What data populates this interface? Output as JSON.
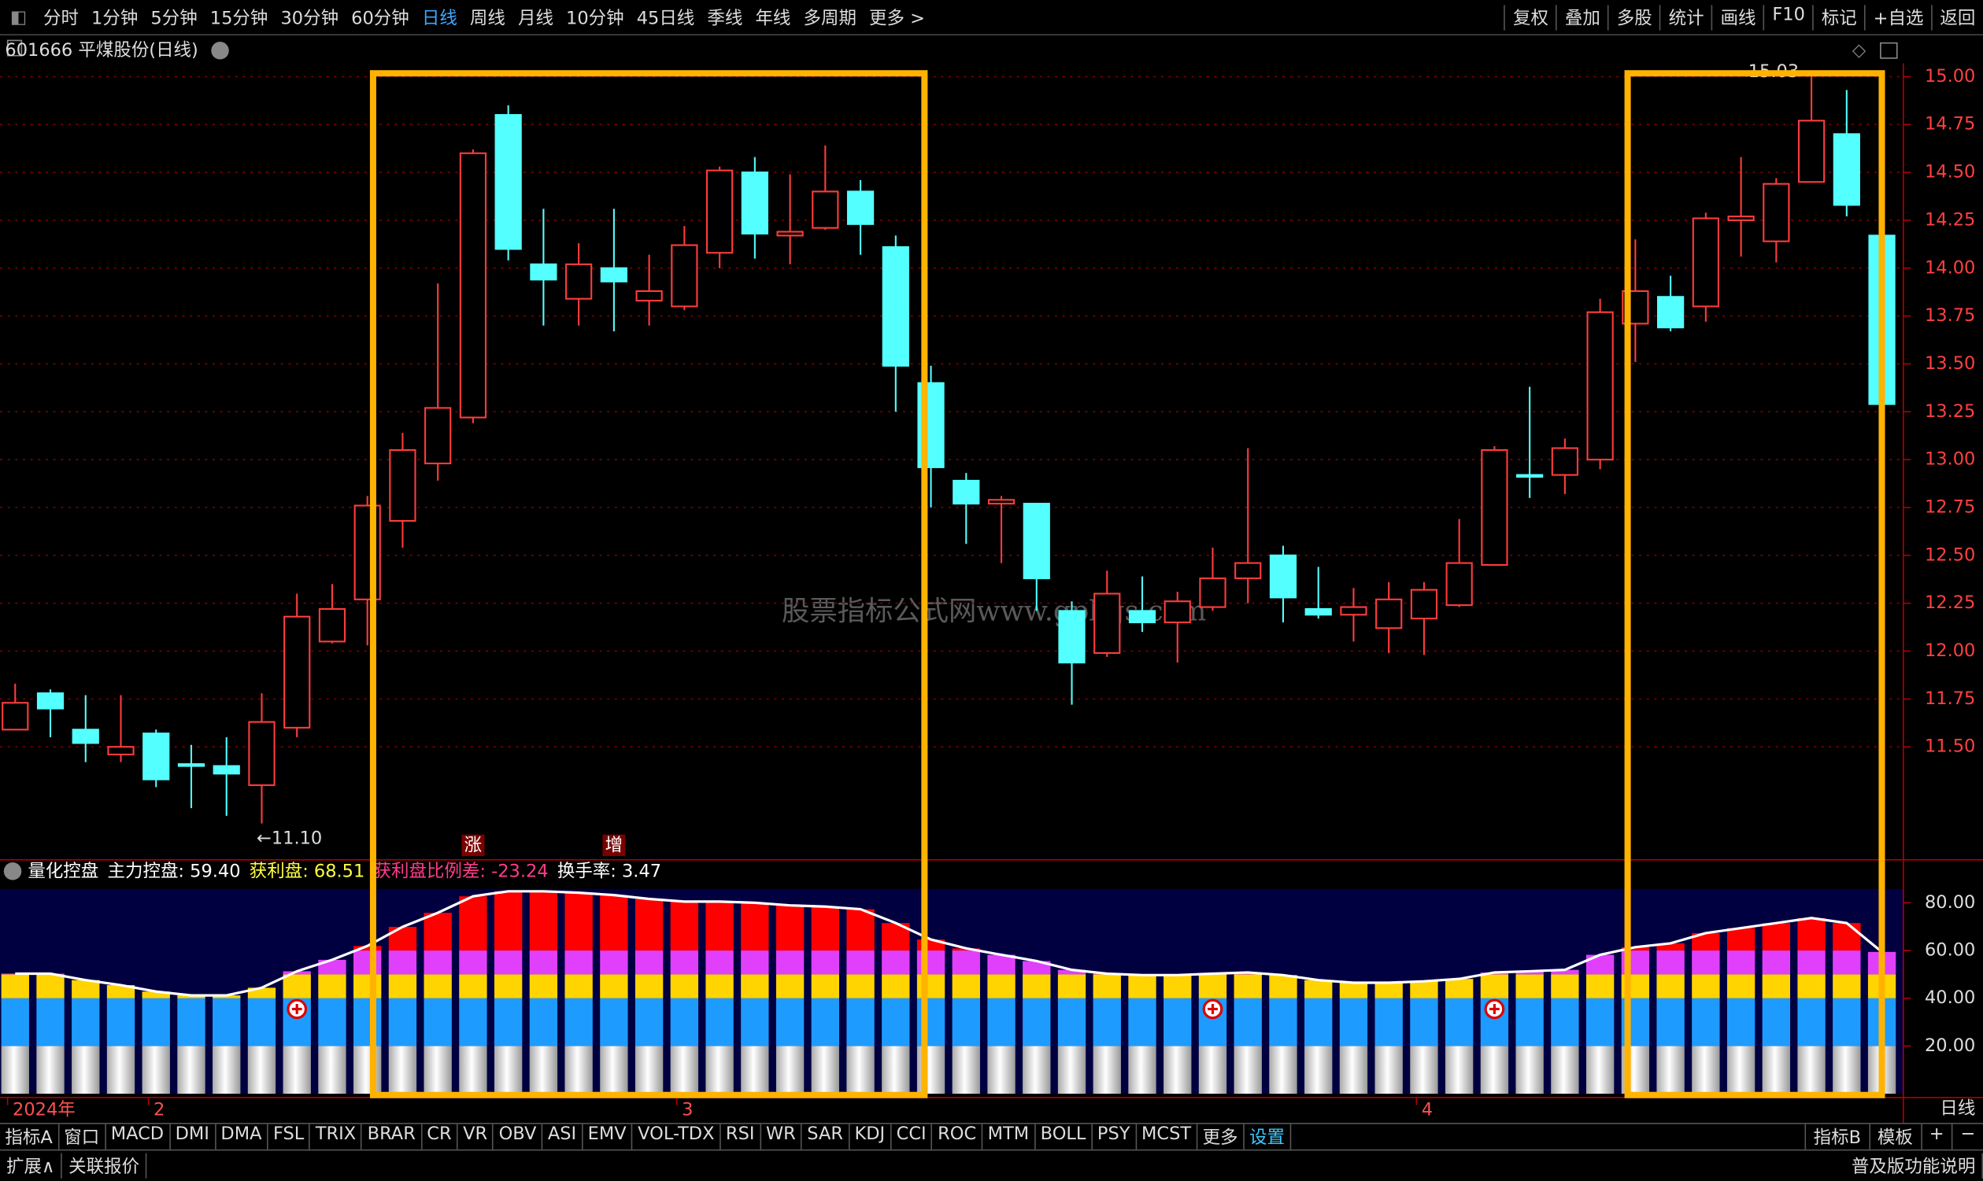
{
  "toolbar": {
    "periods": [
      "分时",
      "1分钟",
      "5分钟",
      "15分钟",
      "30分钟",
      "60分钟",
      "日线",
      "周线",
      "月线",
      "10分钟",
      "45日线",
      "季线",
      "年线",
      "多周期",
      "更多 >"
    ],
    "tools": [
      "复权",
      "叠加",
      "多股",
      "统计",
      "画线",
      "F10",
      "标记",
      "+自选",
      "返回"
    ]
  },
  "symbol_title": "601666 平煤股份(日线)",
  "watermark": "股票指标公式网www.gpbgs.com",
  "chart_data": [
    {
      "type": "candlestick",
      "open": [
        11.59,
        11.78,
        11.59,
        11.46,
        11.57,
        11.41,
        11.4,
        11.3,
        11.6,
        12.05,
        12.27,
        12.68,
        12.98,
        13.22,
        14.8,
        14.02,
        13.84,
        14.0,
        13.83,
        13.8,
        14.08,
        14.5,
        14.17,
        14.21,
        14.4,
        14.11,
        13.4,
        12.89,
        12.77,
        12.77,
        12.21,
        11.99,
        12.21,
        12.15,
        12.23,
        12.38,
        12.5,
        12.22,
        12.19,
        12.12,
        12.17,
        12.24,
        12.45,
        12.92,
        12.92,
        13.0,
        13.71,
        13.85,
        13.8,
        14.25,
        14.14,
        14.45,
        14.7,
        14.17
      ],
      "high": [
        11.83,
        11.8,
        11.77,
        11.77,
        11.59,
        11.51,
        11.55,
        11.78,
        12.3,
        12.35,
        12.81,
        13.14,
        13.92,
        14.62,
        14.85,
        14.31,
        14.13,
        14.31,
        14.07,
        14.22,
        14.53,
        14.58,
        14.49,
        14.64,
        14.46,
        14.17,
        13.49,
        12.93,
        12.81,
        12.77,
        12.26,
        12.42,
        12.39,
        12.31,
        12.54,
        13.06,
        12.55,
        12.44,
        12.33,
        12.36,
        12.36,
        12.69,
        13.07,
        13.38,
        13.11,
        13.84,
        14.15,
        13.96,
        14.29,
        14.58,
        14.47,
        15.03,
        14.93,
        14.39
      ],
      "low": [
        11.59,
        11.55,
        11.42,
        11.42,
        11.29,
        11.18,
        11.14,
        11.1,
        11.55,
        12.04,
        12.03,
        12.54,
        12.89,
        13.19,
        14.04,
        13.7,
        13.7,
        13.67,
        13.7,
        13.78,
        14.0,
        14.05,
        14.02,
        14.2,
        14.07,
        13.25,
        12.75,
        12.56,
        12.46,
        12.21,
        11.72,
        11.97,
        12.1,
        11.94,
        12.21,
        12.25,
        12.15,
        12.17,
        12.05,
        11.99,
        11.98,
        12.23,
        12.45,
        12.8,
        12.82,
        12.95,
        13.51,
        13.67,
        13.72,
        14.06,
        14.03,
        14.45,
        14.27,
        13.22
      ],
      "close": [
        11.73,
        11.7,
        11.52,
        11.5,
        11.33,
        11.4,
        11.36,
        11.63,
        12.18,
        12.22,
        12.76,
        13.05,
        13.27,
        14.6,
        14.1,
        13.94,
        14.02,
        13.93,
        13.88,
        14.12,
        14.51,
        14.18,
        14.19,
        14.4,
        14.23,
        13.49,
        12.96,
        12.77,
        12.79,
        12.38,
        11.94,
        12.3,
        12.15,
        12.26,
        12.38,
        12.46,
        12.28,
        12.19,
        12.23,
        12.27,
        12.32,
        12.46,
        13.05,
        12.91,
        13.06,
        13.77,
        13.88,
        13.69,
        14.26,
        14.27,
        14.44,
        14.77,
        14.33,
        13.29
      ],
      "up_color": "#ff3c3c",
      "down_color": "#54ffff",
      "grid": true,
      "ylim": [
        10.91,
        15.07
      ],
      "yticks": [
        {
          "value": 11.5,
          "label": "11.50"
        },
        {
          "value": 11.75,
          "label": "11.75"
        },
        {
          "value": 12,
          "label": "12.00"
        },
        {
          "value": 12.25,
          "label": "12.25"
        },
        {
          "value": 12.5,
          "label": "12.50"
        },
        {
          "value": 12.75,
          "label": "12.75"
        },
        {
          "value": 13,
          "label": "13.00"
        },
        {
          "value": 13.25,
          "label": "13.25"
        },
        {
          "value": 13.5,
          "label": "13.50"
        },
        {
          "value": 13.75,
          "label": "13.75"
        },
        {
          "value": 14,
          "label": "14.00"
        },
        {
          "value": 14.25,
          "label": "14.25"
        },
        {
          "value": 14.5,
          "label": "14.50"
        },
        {
          "value": 14.75,
          "label": "14.75"
        },
        {
          "value": 15,
          "label": "15.00"
        }
      ],
      "low_label": "←11.10",
      "high_label": "15.03",
      "markers": [
        "涨",
        "增"
      ]
    },
    {
      "type": "bar",
      "title": "量化控盘",
      "legend": [
        "主力控盘: 59.40",
        "获利盘: 68.51",
        "获利盘比例差: -23.24",
        "换手率: 3.47"
      ],
      "legend_colors": [
        "#ffffff",
        "#ffff40",
        "#ff3c8c",
        "#ffffff"
      ],
      "categories": [
        "2024年",
        null,
        null,
        null,
        "2",
        null,
        null,
        null,
        null,
        null,
        null,
        null,
        null,
        null,
        null,
        null,
        null,
        null,
        null,
        "3",
        null,
        null,
        null,
        null,
        null,
        null,
        null,
        null,
        null,
        null,
        null,
        null,
        null,
        null,
        null,
        null,
        null,
        null,
        null,
        null,
        "4",
        null,
        null,
        null,
        null,
        null,
        null,
        null,
        null,
        null,
        null,
        null,
        null,
        null
      ],
      "values": [
        50.3,
        50.3,
        47.6,
        45.5,
        42.8,
        41.2,
        41.2,
        44.4,
        51.3,
        56.1,
        61.9,
        69.9,
        75.8,
        82.7,
        84.8,
        84.8,
        84.2,
        83.2,
        81.6,
        80.5,
        80.5,
        80,
        78.9,
        78.4,
        77.3,
        71.5,
        64.6,
        60.9,
        58.2,
        55.6,
        51.9,
        50.3,
        49.7,
        49.7,
        50.3,
        50.8,
        49.7,
        47.6,
        46.5,
        46.5,
        47.1,
        48.1,
        50.8,
        51.3,
        51.9,
        58.2,
        61.4,
        63,
        67.3,
        69.4,
        71.5,
        73.6,
        71.5,
        59.4
      ],
      "ylim": [
        0,
        85.8
      ],
      "yticks": [
        {
          "value": 20,
          "label": "20.00"
        },
        {
          "value": 40,
          "label": "40.00"
        },
        {
          "value": 60,
          "label": "60.00"
        },
        {
          "value": 80,
          "label": "80.00"
        }
      ],
      "x_axis_label": "日线"
    }
  ],
  "tabs": {
    "indicators": [
      "指标A",
      "窗口",
      "MACD",
      "DMI",
      "DMA",
      "FSL",
      "TRIX",
      "BRAR",
      "CR",
      "VR",
      "OBV",
      "ASI",
      "EMV",
      "VOL-TDX",
      "RSI",
      "WR",
      "SAR",
      "KDJ",
      "CCI",
      "ROC",
      "MTM",
      "BOLL",
      "PSY",
      "MCST",
      "更多",
      "设置"
    ],
    "right": [
      "指标B",
      "模板",
      "+",
      "−"
    ]
  },
  "status": {
    "left": [
      "扩展∧",
      "关联报价"
    ],
    "right": "普及版功能说明"
  }
}
